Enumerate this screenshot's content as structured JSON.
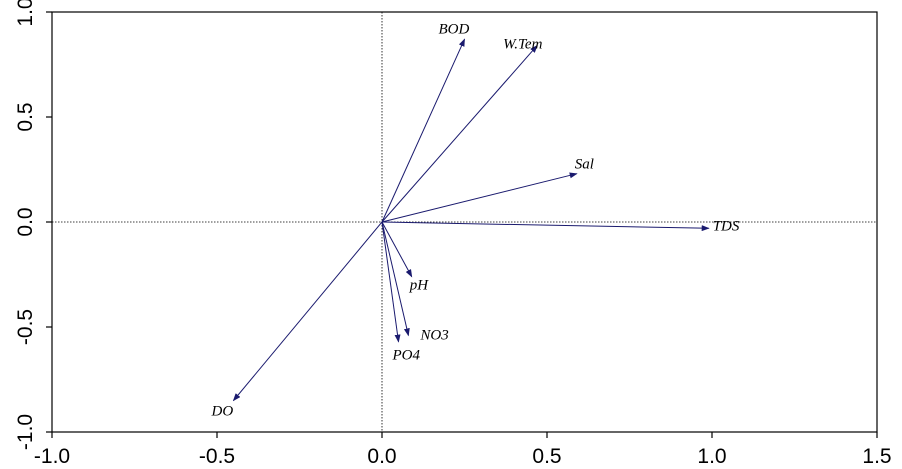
{
  "chart_data": {
    "type": "scatter",
    "subtype": "biplot-vectors",
    "title": "",
    "xlabel": "",
    "ylabel": "",
    "xlim": [
      -1.0,
      1.5
    ],
    "ylim": [
      -1.0,
      1.0
    ],
    "xticks": [
      -1.0,
      -0.5,
      0.0,
      0.5,
      1.0,
      1.5
    ],
    "yticks": [
      -1.0,
      -0.5,
      0.0,
      0.5,
      1.0
    ],
    "xtick_labels": [
      "-1.0",
      "-0.5",
      "0.0",
      "0.5",
      "1.0",
      "1.5"
    ],
    "ytick_labels": [
      "-1.0",
      "-0.5",
      "0.0",
      "0.5",
      "1.0"
    ],
    "grid": false,
    "zero_lines": true,
    "vector_color": "#1a1a6e",
    "vectors": [
      {
        "name": "BOD",
        "x": 0.25,
        "y": 0.87
      },
      {
        "name": "W.Tem",
        "x": 0.47,
        "y": 0.84
      },
      {
        "name": "Sal",
        "x": 0.59,
        "y": 0.23
      },
      {
        "name": "TDS",
        "x": 0.99,
        "y": -0.03
      },
      {
        "name": "pH",
        "x": 0.09,
        "y": -0.26
      },
      {
        "name": "NO3",
        "x": 0.08,
        "y": -0.54
      },
      {
        "name": "PO4",
        "x": 0.05,
        "y": -0.57
      },
      {
        "name": "DO",
        "x": -0.45,
        "y": -0.85
      }
    ]
  }
}
